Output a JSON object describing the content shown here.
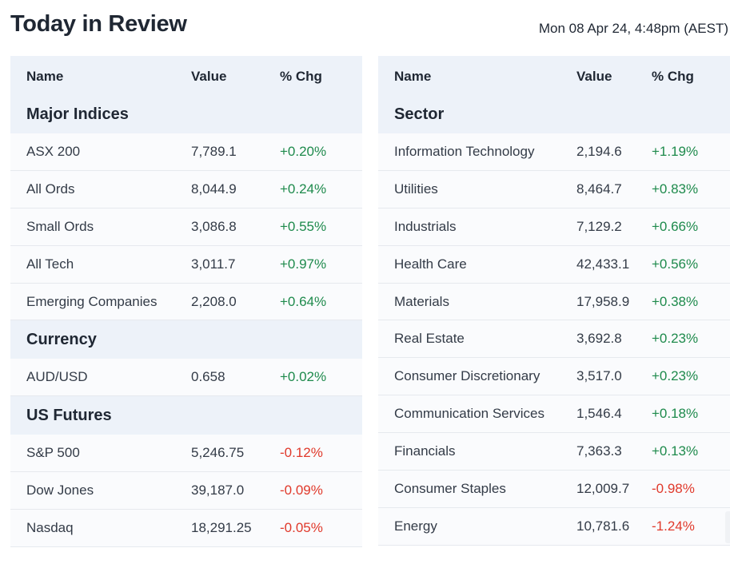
{
  "title": "Today in Review",
  "timestamp": "Mon 08 Apr 24, 4:48pm (AEST)",
  "colors": {
    "positive": "#1e8a4c",
    "negative": "#e0392b",
    "section_bg": "#edf2f9"
  },
  "left": {
    "headers": {
      "name": "Name",
      "value": "Value",
      "chg": "% Chg"
    },
    "sections": [
      {
        "title": "Major Indices",
        "rows": [
          {
            "name": "ASX 200",
            "value": "7,789.1",
            "chg": "+0.20%",
            "dir": "pos"
          },
          {
            "name": "All Ords",
            "value": "8,044.9",
            "chg": "+0.24%",
            "dir": "pos"
          },
          {
            "name": "Small Ords",
            "value": "3,086.8",
            "chg": "+0.55%",
            "dir": "pos"
          },
          {
            "name": "All Tech",
            "value": "3,011.7",
            "chg": "+0.97%",
            "dir": "pos"
          },
          {
            "name": "Emerging Companies",
            "value": "2,208.0",
            "chg": "+0.64%",
            "dir": "pos"
          }
        ]
      },
      {
        "title": "Currency",
        "rows": [
          {
            "name": "AUD/USD",
            "value": "0.658",
            "chg": "+0.02%",
            "dir": "pos"
          }
        ]
      },
      {
        "title": "US Futures",
        "rows": [
          {
            "name": "S&P 500",
            "value": "5,246.75",
            "chg": "-0.12%",
            "dir": "neg"
          },
          {
            "name": "Dow Jones",
            "value": "39,187.0",
            "chg": "-0.09%",
            "dir": "neg"
          },
          {
            "name": "Nasdaq",
            "value": "18,291.25",
            "chg": "-0.05%",
            "dir": "neg"
          }
        ]
      }
    ]
  },
  "right": {
    "headers": {
      "name": "Name",
      "value": "Value",
      "chg": "% Chg"
    },
    "sections": [
      {
        "title": "Sector",
        "rows": [
          {
            "name": "Information Technology",
            "value": "2,194.6",
            "chg": "+1.19%",
            "dir": "pos"
          },
          {
            "name": "Utilities",
            "value": "8,464.7",
            "chg": "+0.83%",
            "dir": "pos"
          },
          {
            "name": "Industrials",
            "value": "7,129.2",
            "chg": "+0.66%",
            "dir": "pos"
          },
          {
            "name": "Health Care",
            "value": "42,433.1",
            "chg": "+0.56%",
            "dir": "pos"
          },
          {
            "name": "Materials",
            "value": "17,958.9",
            "chg": "+0.38%",
            "dir": "pos"
          },
          {
            "name": "Real Estate",
            "value": "3,692.8",
            "chg": "+0.23%",
            "dir": "pos"
          },
          {
            "name": "Consumer Discretionary",
            "value": "3,517.0",
            "chg": "+0.23%",
            "dir": "pos"
          },
          {
            "name": "Communication Services",
            "value": "1,546.4",
            "chg": "+0.18%",
            "dir": "pos"
          },
          {
            "name": "Financials",
            "value": "7,363.3",
            "chg": "+0.13%",
            "dir": "pos"
          },
          {
            "name": "Consumer Staples",
            "value": "12,009.7",
            "chg": "-0.98%",
            "dir": "neg"
          },
          {
            "name": "Energy",
            "value": "10,781.6",
            "chg": "-1.24%",
            "dir": "neg"
          }
        ]
      }
    ]
  }
}
